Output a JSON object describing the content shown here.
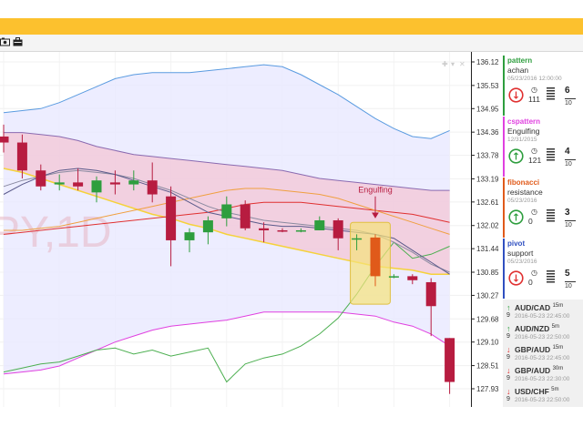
{
  "colors": {
    "accent_yellow": "#fcc12e",
    "bull": "#2e9e3e",
    "bear": "#b71c40",
    "pattern_candle": "#e05a1a",
    "upper_band": "#5a9be0",
    "lower_band": "#e040e0"
  },
  "toolbar": {
    "icons": [
      "camera-icon",
      "briefcase-icon"
    ]
  },
  "watermark": "PY,1D",
  "annotation": {
    "label": "Engulfing"
  },
  "panel": {
    "cards": [
      {
        "type": "pattern",
        "name": "achan",
        "date": "05/23/2016 12:00:00",
        "direction": "down",
        "count": "111",
        "score": "6",
        "total": "10",
        "color": "#2e9e3e",
        "dir_color": "#e03030"
      },
      {
        "type": "cspattern",
        "name": "Engulfing",
        "date": "12/31/2015",
        "direction": "up",
        "count": "121",
        "score": "4",
        "total": "10",
        "color": "#e040e0",
        "dir_color": "#2e9e3e"
      },
      {
        "type": "fibonacci",
        "name": "resistance",
        "date": "05/23/2016",
        "direction": "up",
        "count": "0",
        "score": "3",
        "total": "10",
        "color": "#e05a1a",
        "dir_color": "#2e9e3e"
      },
      {
        "type": "pivot",
        "name": "support",
        "date": "05/23/2016",
        "direction": "down",
        "count": "0",
        "score": "5",
        "total": "10",
        "color": "#3050c0",
        "dir_color": "#e03030"
      }
    ],
    "alerts": [
      {
        "direction": "up",
        "pair": "AUD/CAD",
        "tf": "15m",
        "count": "9",
        "time": "2016-05-23 22:45:00"
      },
      {
        "direction": "up",
        "pair": "AUD/NZD",
        "tf": "5m",
        "count": "9",
        "time": "2016-05-23 22:50:00"
      },
      {
        "direction": "down",
        "pair": "GBP/AUD",
        "tf": "15m",
        "count": "9",
        "time": "2016-05-23 22:45:00"
      },
      {
        "direction": "down",
        "pair": "GBP/AUD",
        "tf": "30m",
        "count": "9",
        "time": "2016-05-23 22:30:00"
      },
      {
        "direction": "down",
        "pair": "USD/CHF",
        "tf": "5m",
        "count": "9",
        "time": "2016-05-23 22:50:00"
      }
    ]
  },
  "chart_data": {
    "type": "candlestick",
    "title": "",
    "y_ticks": [
      "136.12",
      "135.53",
      "134.95",
      "134.36",
      "133.78",
      "133.19",
      "132.61",
      "132.02",
      "131.44",
      "130.85",
      "130.27",
      "129.68",
      "129.10",
      "128.51",
      "127.93"
    ],
    "ylim": [
      127.7,
      136.3
    ],
    "candles": [
      {
        "o": 134.25,
        "h": 134.55,
        "l": 133.85,
        "c": 134.1
      },
      {
        "o": 134.1,
        "h": 134.3,
        "l": 133.2,
        "c": 133.4
      },
      {
        "o": 133.4,
        "h": 133.55,
        "l": 132.9,
        "c": 133.0
      },
      {
        "o": 133.05,
        "h": 133.3,
        "l": 132.9,
        "c": 133.1
      },
      {
        "o": 133.1,
        "h": 133.45,
        "l": 132.9,
        "c": 133.0
      },
      {
        "o": 132.85,
        "h": 133.25,
        "l": 132.6,
        "c": 133.15
      },
      {
        "o": 133.1,
        "h": 133.4,
        "l": 132.8,
        "c": 133.05
      },
      {
        "o": 133.05,
        "h": 133.4,
        "l": 132.9,
        "c": 133.15
      },
      {
        "o": 133.15,
        "h": 133.6,
        "l": 132.6,
        "c": 132.8
      },
      {
        "o": 132.75,
        "h": 133.0,
        "l": 131.0,
        "c": 131.65
      },
      {
        "o": 131.65,
        "h": 131.95,
        "l": 131.35,
        "c": 131.85
      },
      {
        "o": 131.85,
        "h": 132.25,
        "l": 131.55,
        "c": 132.15
      },
      {
        "o": 132.2,
        "h": 132.75,
        "l": 132.0,
        "c": 132.55
      },
      {
        "o": 132.55,
        "h": 132.65,
        "l": 131.9,
        "c": 131.95
      },
      {
        "o": 131.95,
        "h": 132.1,
        "l": 131.6,
        "c": 131.9
      },
      {
        "o": 131.9,
        "h": 131.95,
        "l": 131.85,
        "c": 131.88
      },
      {
        "o": 131.88,
        "h": 131.95,
        "l": 131.85,
        "c": 131.9
      },
      {
        "o": 131.9,
        "h": 132.25,
        "l": 131.9,
        "c": 132.15
      },
      {
        "o": 132.15,
        "h": 132.2,
        "l": 131.4,
        "c": 131.7
      },
      {
        "o": 131.7,
        "h": 131.8,
        "l": 131.4,
        "c": 131.7
      },
      {
        "o": 131.72,
        "h": 131.8,
        "l": 130.5,
        "c": 130.75
      },
      {
        "o": 130.75,
        "h": 130.8,
        "l": 130.7,
        "c": 130.75
      },
      {
        "o": 130.75,
        "h": 130.8,
        "l": 130.55,
        "c": 130.65
      },
      {
        "o": 130.6,
        "h": 130.7,
        "l": 129.25,
        "c": 130.0
      },
      {
        "o": 129.2,
        "h": 129.2,
        "l": 127.8,
        "c": 128.1
      }
    ],
    "upper_band": [
      134.85,
      134.9,
      134.95,
      135.1,
      135.3,
      135.5,
      135.7,
      135.8,
      135.85,
      135.85,
      135.85,
      135.9,
      135.95,
      136.0,
      136.05,
      136.0,
      135.8,
      135.55,
      135.3,
      135.0,
      134.7,
      134.45,
      134.25,
      134.2,
      134.4
    ],
    "lower_band": [
      128.3,
      128.35,
      128.4,
      128.5,
      128.7,
      128.9,
      129.1,
      129.25,
      129.4,
      129.5,
      129.55,
      129.6,
      129.65,
      129.75,
      129.85,
      129.85,
      129.85,
      129.85,
      129.85,
      129.8,
      129.75,
      129.6,
      129.5,
      129.3,
      129.0
    ],
    "envelope_upper": [
      134.35,
      134.35,
      134.3,
      134.25,
      134.15,
      134.0,
      133.9,
      133.8,
      133.75,
      133.7,
      133.65,
      133.6,
      133.55,
      133.5,
      133.45,
      133.4,
      133.3,
      133.2,
      133.15,
      133.1,
      133.05,
      133.0,
      132.95,
      132.9,
      132.9
    ],
    "envelope_lower": [
      133.45,
      133.35,
      133.2,
      133.05,
      132.9,
      132.75,
      132.6,
      132.45,
      132.3,
      132.2,
      132.05,
      131.95,
      131.8,
      131.7,
      131.6,
      131.5,
      131.4,
      131.3,
      131.2,
      131.1,
      131.0,
      130.95,
      130.9,
      130.8,
      130.8
    ],
    "ma_fast": [
      132.8,
      133.05,
      133.25,
      133.4,
      133.45,
      133.4,
      133.3,
      133.15,
      133.0,
      132.85,
      132.6,
      132.35,
      132.25,
      132.15,
      132.05,
      132.0,
      132.0,
      131.95,
      131.9,
      131.85,
      131.8,
      131.7,
      131.4,
      131.1,
      130.8
    ],
    "ma_slow": [
      133.0,
      133.15,
      133.25,
      133.35,
      133.4,
      133.35,
      133.3,
      133.2,
      133.05,
      132.9,
      132.7,
      132.5,
      132.35,
      132.25,
      132.15,
      132.1,
      132.05,
      132.0,
      131.95,
      131.9,
      131.8,
      131.6,
      131.35,
      131.05,
      130.85
    ],
    "fib_lines": [
      {
        "color": "#e03030",
        "y": [
          131.8,
          131.85,
          131.9,
          131.95,
          132.0,
          132.05,
          132.1,
          132.15,
          132.2,
          132.25,
          132.3,
          132.35,
          132.45,
          132.55,
          132.6,
          132.6,
          132.6,
          132.55,
          132.5,
          132.45,
          132.4,
          132.35,
          132.3,
          132.2,
          132.1
        ]
      },
      {
        "color": "#f0a040",
        "y": [
          131.9,
          131.9,
          131.95,
          132.0,
          132.1,
          132.2,
          132.3,
          132.4,
          132.5,
          132.6,
          132.7,
          132.8,
          132.9,
          132.95,
          132.95,
          132.9,
          132.85,
          132.8,
          132.7,
          132.55,
          132.4,
          132.25,
          132.1,
          131.95,
          131.8
        ]
      }
    ],
    "green_line": [
      128.35,
      128.45,
      128.55,
      128.6,
      128.75,
      128.9,
      128.95,
      128.8,
      128.9,
      128.75,
      128.85,
      128.95,
      128.1,
      128.55,
      128.7,
      128.8,
      129.0,
      129.3,
      129.7,
      130.3,
      131.0,
      131.6,
      131.2,
      131.3,
      131.5
    ],
    "pattern_index": 20,
    "bull_color": "#2e9e3e",
    "bear_color": "#b71c40"
  }
}
